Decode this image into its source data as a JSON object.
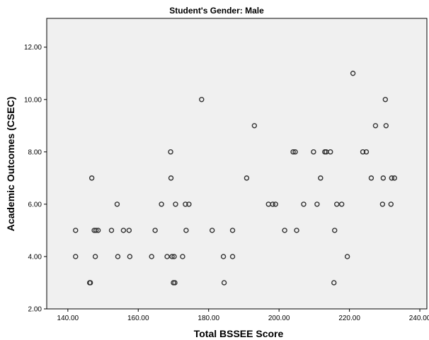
{
  "chart_data": {
    "type": "scatter",
    "title": "Student's Gender: Male",
    "xlabel": "Total BSSEE Score",
    "ylabel": "Academic Outcomes (CSEC)",
    "xlim": [
      134,
      242
    ],
    "ylim": [
      2,
      13.1
    ],
    "xticks": [
      140,
      160,
      180,
      200,
      220,
      240
    ],
    "yticks": [
      2,
      4,
      6,
      8,
      10,
      12
    ],
    "xtick_labels": [
      "140.00",
      "160.00",
      "180.00",
      "200.00",
      "220.00",
      "240.00"
    ],
    "ytick_labels": [
      "2.00",
      "4.00",
      "6.00",
      "8.00",
      "10.00",
      "12.00"
    ],
    "grid": false,
    "plot_background": "#f0f0f0",
    "marker_color": "#333333",
    "x": [
      142.2,
      142.2,
      146.2,
      146.4,
      146.8,
      147.5,
      147.8,
      148.0,
      148.6,
      152.4,
      154.0,
      154.2,
      155.8,
      157.4,
      157.6,
      163.8,
      164.8,
      166.6,
      168.2,
      169.2,
      169.3,
      169.6,
      170.0,
      170.2,
      170.4,
      170.6,
      172.6,
      173.4,
      173.6,
      174.4,
      178.0,
      181.0,
      184.2,
      184.4,
      186.8,
      186.8,
      190.8,
      193.0,
      197.0,
      198.2,
      199.0,
      201.6,
      204.0,
      204.6,
      205.0,
      207.0,
      209.8,
      210.8,
      211.8,
      213.0,
      213.4,
      214.6,
      215.6,
      215.8,
      216.4,
      217.8,
      219.4,
      221.0,
      223.8,
      224.8,
      226.2,
      227.4,
      229.4,
      229.6,
      230.2,
      230.4,
      231.8,
      232.0,
      232.8
    ],
    "y": [
      5,
      4,
      3,
      3,
      7,
      5,
      4,
      5,
      5,
      5,
      6,
      4,
      5,
      5,
      4,
      4,
      5,
      6,
      4,
      8,
      7,
      4,
      3,
      4,
      3,
      6,
      4,
      6,
      5,
      6,
      10,
      5,
      4,
      3,
      5,
      4,
      7,
      9,
      6,
      6,
      6,
      5,
      8,
      8,
      5,
      6,
      8,
      6,
      7,
      8,
      8,
      8,
      3,
      5,
      6,
      6,
      4,
      11,
      8,
      8,
      7,
      9,
      6,
      7,
      10,
      9,
      6,
      7,
      7
    ]
  }
}
